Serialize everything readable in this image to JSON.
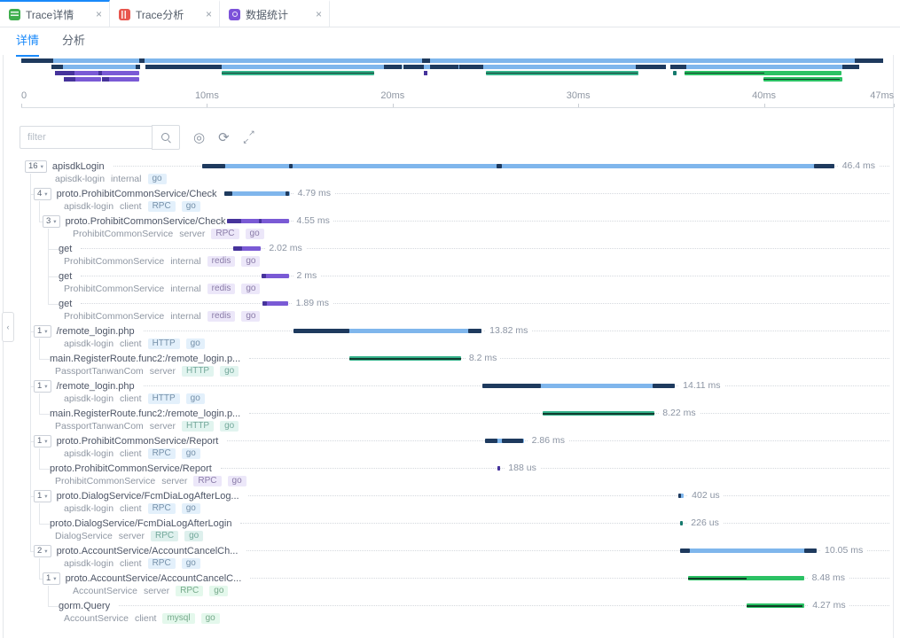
{
  "tab_bar": {
    "tabs": [
      {
        "label": "Trace详情",
        "active": true,
        "icon": "trace-detail-icon"
      },
      {
        "label": "Trace分析",
        "active": false,
        "icon": "trace-analysis-icon"
      },
      {
        "label": "数据统计",
        "active": false,
        "icon": "data-stats-icon"
      }
    ],
    "close_icon": "×"
  },
  "sub_tabs": {
    "items": [
      {
        "label": "详情",
        "active": true
      },
      {
        "label": "分析",
        "active": false
      }
    ]
  },
  "icons": {
    "close": "×",
    "collapse": "‹",
    "target": "◎",
    "refresh": "⟳",
    "expand_ne": "↗",
    "expand_sw": "↙",
    "badge_caret": "▾"
  },
  "toolbar": {
    "filter_placeholder": "filter"
  },
  "axis": {
    "unit": "ms",
    "total_ms": 47,
    "ticks": [
      {
        "ms": 0,
        "label": "0"
      },
      {
        "ms": 10,
        "label": "10ms"
      },
      {
        "ms": 20,
        "label": "20ms"
      },
      {
        "ms": 30,
        "label": "30ms"
      },
      {
        "ms": 40,
        "label": "40ms"
      },
      {
        "ms": 47,
        "label": "47ms"
      }
    ]
  },
  "colors": {
    "accent_blue": "#1989fa",
    "palettes": {
      "blue": {
        "bar": "#7fb6ec",
        "mark": "#1e3a5e",
        "tag_bg": "#e3f0fb",
        "tag_color": "#7590a9"
      },
      "purple": {
        "bar": "#7a5ad5",
        "mark": "#46339b",
        "tag_bg": "#ece7f9",
        "tag_color": "#8a7ca8"
      },
      "teal": {
        "bar": "#35b38b",
        "mark": "#123d30",
        "tag_bg": "#e1f4ef",
        "tag_color": "#74a89b"
      },
      "green": {
        "bar": "#2bc164",
        "mark": "#0f3f27",
        "tag_bg": "#e4f8ec",
        "tag_color": "#76a98b"
      },
      "tealdark": {
        "bar": "#167a6d",
        "mark": "#0c4a42",
        "tag_bg": "#def0ed",
        "tag_color": "#74a89b"
      }
    }
  },
  "spans": [
    {
      "name": "apisdkLogin",
      "service": "apisdk-login",
      "kind": "internal",
      "tags": [
        "go"
      ],
      "count": "16",
      "depth": 0,
      "palette": "blue",
      "start_ms": 0,
      "duration_ms": 46.4,
      "duration_label": "46.4 ms",
      "marks": [
        [
          0,
          1.7
        ],
        [
          6.35,
          0.3
        ],
        [
          21.6,
          0.4
        ],
        [
          44.9,
          1.5
        ]
      ]
    },
    {
      "name": "proto.ProhibitCommonService/Check",
      "service": "apisdk-login",
      "kind": "client",
      "tags": [
        "RPC",
        "go"
      ],
      "count": "4",
      "depth": 1,
      "palette": "blue",
      "start_ms": 1.63,
      "duration_ms": 4.79,
      "duration_label": "4.79 ms",
      "marks": [
        [
          1.63,
          0.6
        ],
        [
          6.15,
          0.25
        ]
      ]
    },
    {
      "name": "proto.ProhibitCommonService/Check",
      "service": "ProhibitCommonService",
      "kind": "server",
      "tags": [
        "RPC",
        "go"
      ],
      "count": "3",
      "depth": 2,
      "palette": "purple",
      "start_ms": 1.8,
      "duration_ms": 4.55,
      "duration_label": "4.55 ms",
      "marks": [
        [
          1.8,
          1.05
        ],
        [
          4.15,
          0.2
        ]
      ]
    },
    {
      "name": "get",
      "service": "ProhibitCommonService",
      "kind": "internal",
      "tags": [
        "redis",
        "go"
      ],
      "count": null,
      "depth": 3,
      "palette": "purple",
      "start_ms": 2.3,
      "duration_ms": 2.02,
      "duration_label": "2.02 ms",
      "marks": [
        [
          2.3,
          0.6
        ]
      ]
    },
    {
      "name": "get",
      "service": "ProhibitCommonService",
      "kind": "internal",
      "tags": [
        "redis",
        "go"
      ],
      "count": null,
      "depth": 3,
      "palette": "purple",
      "start_ms": 4.35,
      "duration_ms": 2.0,
      "duration_label": "2 ms",
      "marks": [
        [
          4.35,
          0.35
        ]
      ]
    },
    {
      "name": "get",
      "service": "ProhibitCommonService",
      "kind": "internal",
      "tags": [
        "redis",
        "go"
      ],
      "count": null,
      "depth": 3,
      "palette": "purple",
      "start_ms": 4.4,
      "duration_ms": 1.89,
      "duration_label": "1.89 ms",
      "marks": [
        [
          4.4,
          0.35
        ]
      ]
    },
    {
      "name": "/remote_login.php",
      "service": "apisdk-login",
      "kind": "client",
      "tags": [
        "HTTP",
        "go"
      ],
      "count": "1",
      "depth": 1,
      "palette": "blue",
      "start_ms": 6.7,
      "duration_ms": 13.82,
      "duration_label": "13.82 ms",
      "marks": [
        [
          6.7,
          4.1
        ],
        [
          19.55,
          0.95
        ]
      ]
    },
    {
      "name": "main.RegisterRoute.func2:/remote_login.p...",
      "service": "PassportTanwanCom",
      "kind": "server",
      "tags": [
        "HTTP",
        "go"
      ],
      "count": null,
      "depth": 2,
      "palette": "teal",
      "start_ms": 10.8,
      "duration_ms": 8.2,
      "duration_label": "8.2 ms",
      "core": [
        10.8,
        19.0
      ]
    },
    {
      "name": "/remote_login.php",
      "service": "apisdk-login",
      "kind": "client",
      "tags": [
        "HTTP",
        "go"
      ],
      "count": "1",
      "depth": 1,
      "palette": "blue",
      "start_ms": 20.6,
      "duration_ms": 14.11,
      "duration_label": "14.11 ms",
      "marks": [
        [
          20.6,
          4.3
        ],
        [
          33.1,
          1.6
        ]
      ]
    },
    {
      "name": "main.RegisterRoute.func2:/remote_login.p...",
      "service": "PassportTanwanCom",
      "kind": "server",
      "tags": [
        "HTTP",
        "go"
      ],
      "count": null,
      "depth": 2,
      "palette": "teal",
      "start_ms": 25.0,
      "duration_ms": 8.22,
      "duration_label": "8.22 ms",
      "core": [
        25.0,
        33.2
      ]
    },
    {
      "name": "proto.ProhibitCommonService/Report",
      "service": "apisdk-login",
      "kind": "client",
      "tags": [
        "RPC",
        "go"
      ],
      "count": "1",
      "depth": 1,
      "palette": "blue",
      "start_ms": 20.75,
      "duration_ms": 2.86,
      "duration_label": "2.86 ms",
      "marks": [
        [
          20.75,
          0.95
        ],
        [
          22.0,
          1.55
        ]
      ]
    },
    {
      "name": "proto.ProhibitCommonService/Report",
      "service": "ProhibitCommonService",
      "kind": "server",
      "tags": [
        "RPC",
        "go"
      ],
      "count": null,
      "depth": 2,
      "palette": "purple",
      "start_ms": 21.7,
      "duration_ms": 0.188,
      "duration_label": "188 us",
      "marks": [
        [
          21.7,
          0.188
        ]
      ]
    },
    {
      "name": "proto.DialogService/FcmDiaLogAfterLog...",
      "service": "apisdk-login",
      "kind": "client",
      "tags": [
        "RPC",
        "go"
      ],
      "count": "1",
      "depth": 1,
      "palette": "blue",
      "start_ms": 34.96,
      "duration_ms": 0.402,
      "duration_label": "402 us",
      "marks": [
        [
          34.96,
          0.18
        ]
      ]
    },
    {
      "name": "proto.DialogService/FcmDiaLogAfterLogin",
      "service": "DialogService",
      "kind": "server",
      "tags": [
        "RPC",
        "go"
      ],
      "count": null,
      "depth": 2,
      "palette": "tealdark",
      "start_ms": 35.08,
      "duration_ms": 0.226,
      "duration_label": "226 us"
    },
    {
      "name": "proto.AccountService/AccountCancelCh...",
      "service": "apisdk-login",
      "kind": "client",
      "tags": [
        "RPC",
        "go"
      ],
      "count": "2",
      "depth": 1,
      "palette": "blue",
      "start_ms": 35.07,
      "duration_ms": 10.05,
      "duration_label": "10.05 ms",
      "marks": [
        [
          35.07,
          0.75
        ],
        [
          44.2,
          0.92
        ]
      ]
    },
    {
      "name": "proto.AccountService/AccountCancelC...",
      "service": "AccountService",
      "kind": "server",
      "tags": [
        "RPC",
        "go"
      ],
      "count": "1",
      "depth": 2,
      "palette": "green",
      "start_ms": 35.7,
      "duration_ms": 8.48,
      "duration_label": "8.48 ms",
      "core": [
        35.7,
        40.0
      ]
    },
    {
      "name": "gorm.Query",
      "service": "AccountService",
      "kind": "client",
      "tags": [
        "mysql",
        "go"
      ],
      "count": null,
      "depth": 3,
      "palette": "green",
      "start_ms": 39.95,
      "duration_ms": 4.27,
      "duration_label": "4.27 ms",
      "core": [
        39.95,
        44.1
      ]
    }
  ]
}
